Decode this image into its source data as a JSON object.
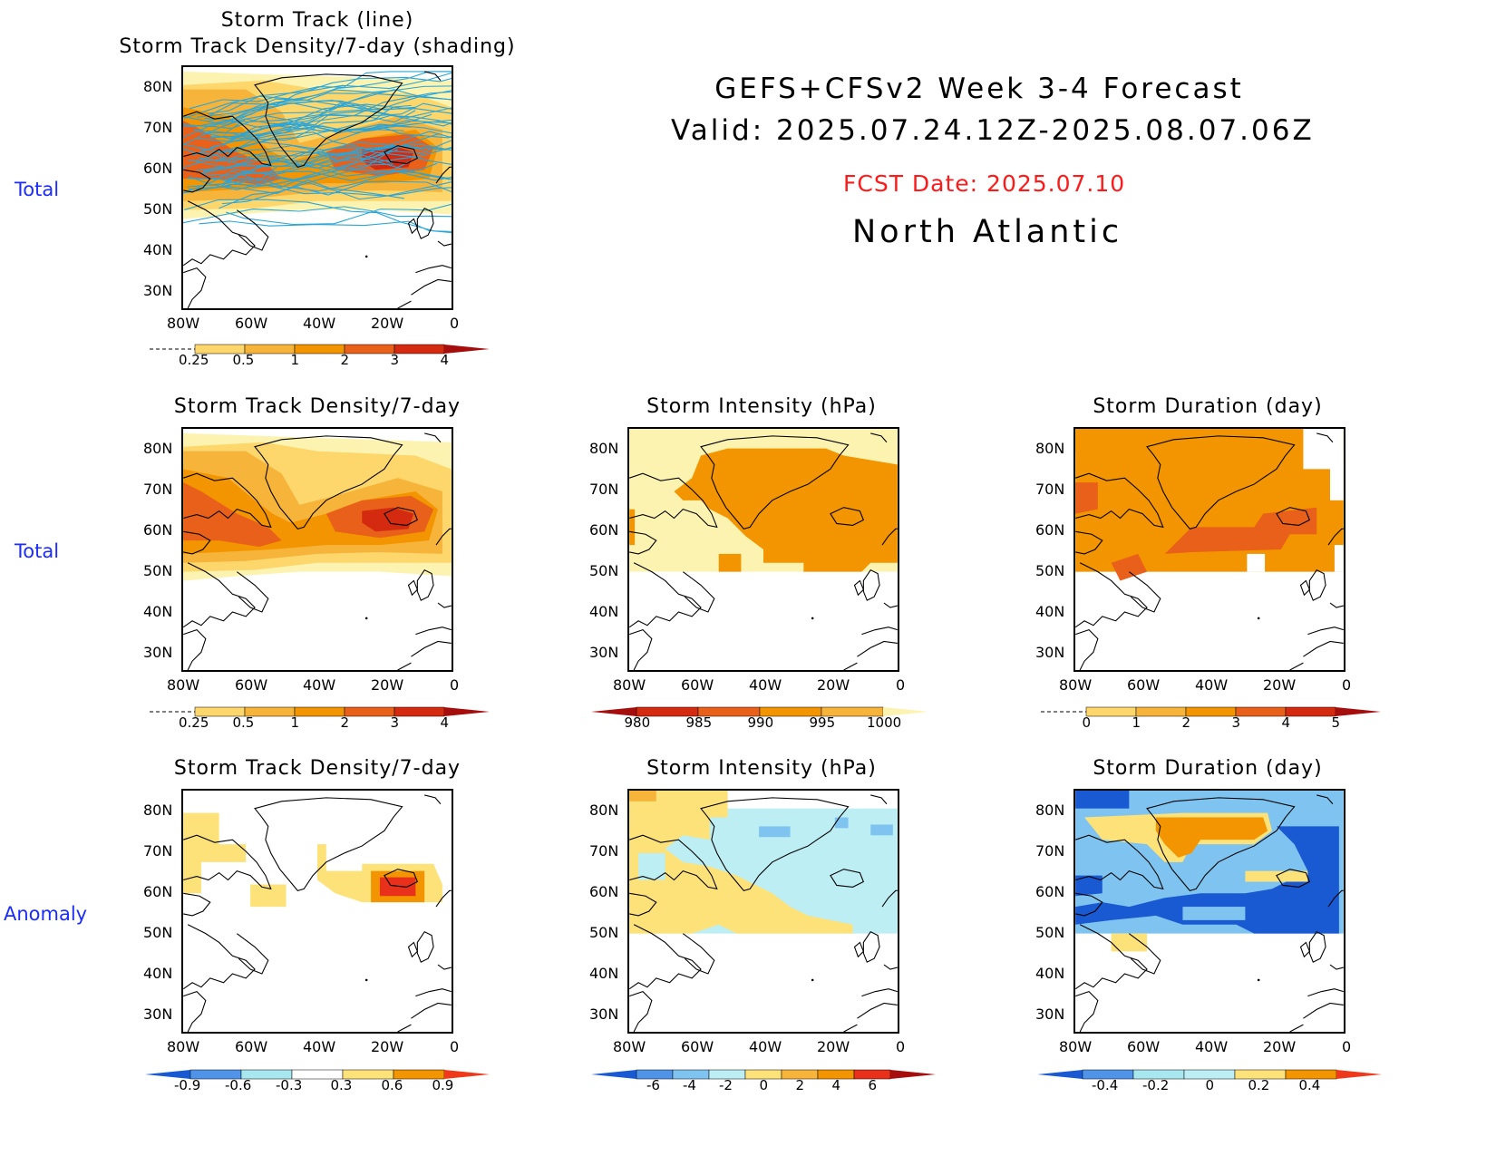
{
  "header": {
    "title_line1": "GEFS+CFSv2 Week 3-4 Forecast",
    "title_line2": "Valid: 2025.07.24.12Z-2025.08.07.06Z",
    "fcst_date": "FCST Date: 2025.07.10",
    "region": "North Atlantic"
  },
  "row_labels": [
    "Total",
    "Total",
    "Anomaly"
  ],
  "panels": [
    {
      "id": "track",
      "title_line1": "Storm Track (line)",
      "title_line2": "Storm Track Density/7-day (shading)"
    },
    {
      "id": "density_total",
      "title": "Storm Track Density/7-day"
    },
    {
      "id": "intensity_total",
      "title": "Storm Intensity (hPa)"
    },
    {
      "id": "duration_total",
      "title": "Storm Duration (day)"
    },
    {
      "id": "density_anom",
      "title": "Storm Track Density/7-day"
    },
    {
      "id": "intensity_anom",
      "title": "Storm Intensity (hPa)"
    },
    {
      "id": "duration_anom",
      "title": "Storm Duration (day)"
    }
  ],
  "axes": {
    "lat_labels": [
      "80N",
      "70N",
      "60N",
      "50N",
      "40N",
      "30N"
    ],
    "lon_labels": [
      "80W",
      "60W",
      "40W",
      "20W",
      "0"
    ]
  },
  "colorbars": {
    "density_total": {
      "labels": [
        "0.25",
        "0.5",
        "1",
        "2",
        "3",
        "4"
      ],
      "colors": [
        "#fffbbb",
        "#fdd66c",
        "#f7b43a",
        "#f39500",
        "#e8601a",
        "#d42a10",
        "#a60e0e"
      ]
    },
    "intensity_total": {
      "labels": [
        "980",
        "985",
        "990",
        "995",
        "1000"
      ],
      "colors": [
        "#a60e0e",
        "#d42a10",
        "#e8601a",
        "#f39500",
        "#f7b43a",
        "#fdf3b0"
      ]
    },
    "duration_total": {
      "labels": [
        "0",
        "1",
        "2",
        "3",
        "4",
        "5"
      ],
      "colors": [
        "#fffbbb",
        "#fdd66c",
        "#f7b43a",
        "#f39500",
        "#e8601a",
        "#d42a10",
        "#a60e0e"
      ]
    },
    "density_anom": {
      "labels": [
        "-0.9",
        "-0.6",
        "-0.3",
        "0.3",
        "0.6",
        "0.9"
      ],
      "colors": [
        "#1959d1",
        "#4f94e8",
        "#a8e7f0",
        "#ffffff",
        "#fde27a",
        "#f39500",
        "#ee3a1a"
      ]
    },
    "intensity_anom": {
      "labels": [
        "-6",
        "-4",
        "-2",
        "0",
        "2",
        "4",
        "6"
      ],
      "colors": [
        "#1959d1",
        "#4f94e8",
        "#7fc4f0",
        "#bdeef4",
        "#fde27a",
        "#f7b43a",
        "#f39500",
        "#e8301a",
        "#a60e0e"
      ]
    },
    "duration_anom": {
      "labels": [
        "-0.4",
        "-0.2",
        "0",
        "0.2",
        "0.4"
      ],
      "colors": [
        "#1959d1",
        "#4f94e8",
        "#a8e7f0",
        "#bdeef4",
        "#fde27a",
        "#f39500",
        "#ee3a1a"
      ]
    }
  }
}
